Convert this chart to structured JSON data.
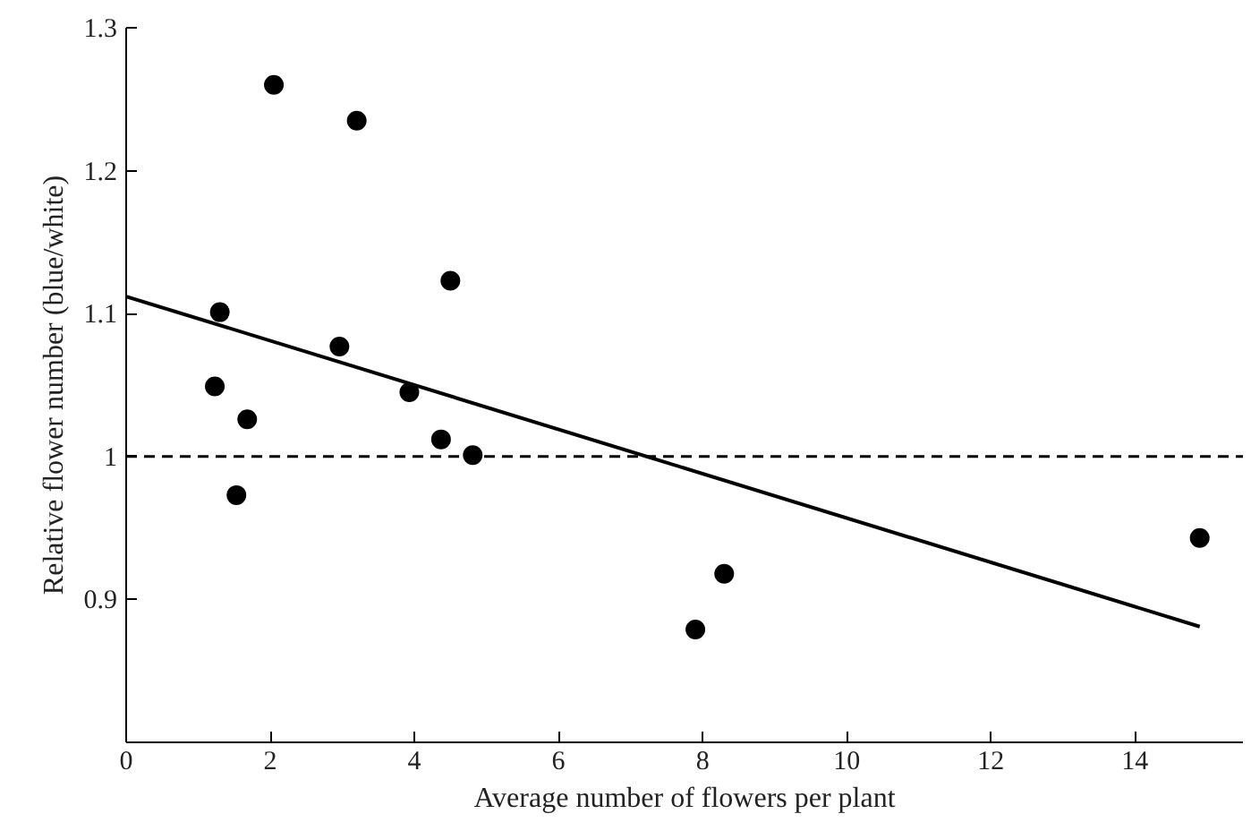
{
  "chart_data": {
    "type": "scatter",
    "xlabel": "Average number of flowers per plant",
    "ylabel": "Relative flower number (blue/white)",
    "xlim": [
      0,
      15.5
    ],
    "ylim": [
      0.8,
      1.3
    ],
    "xticks": [
      0,
      2,
      4,
      6,
      8,
      10,
      12,
      14
    ],
    "yticks": [
      0.9,
      1,
      1.1,
      1.2,
      1.3
    ],
    "grid": false,
    "series": [
      {
        "marker": "circle",
        "color": "#000000",
        "x": [
          2.05,
          3.2,
          4.5,
          1.3,
          2.96,
          1.23,
          3.93,
          1.68,
          4.37,
          4.81,
          1.53,
          8.3,
          7.9,
          14.9
        ],
        "values": [
          1.26,
          1.235,
          1.123,
          1.101,
          1.077,
          1.049,
          1.045,
          1.026,
          1.012,
          1.001,
          0.973,
          0.918,
          0.879,
          0.943
        ]
      },
      {
        "type": "line",
        "color": "#000000",
        "line_style": "solid",
        "x": [
          0,
          14.9
        ],
        "values": [
          1.112,
          0.881
        ]
      }
    ],
    "ref_lines": [
      {
        "axis": "y",
        "value": 1,
        "color": "#000000",
        "line_style": "dashed"
      }
    ]
  }
}
